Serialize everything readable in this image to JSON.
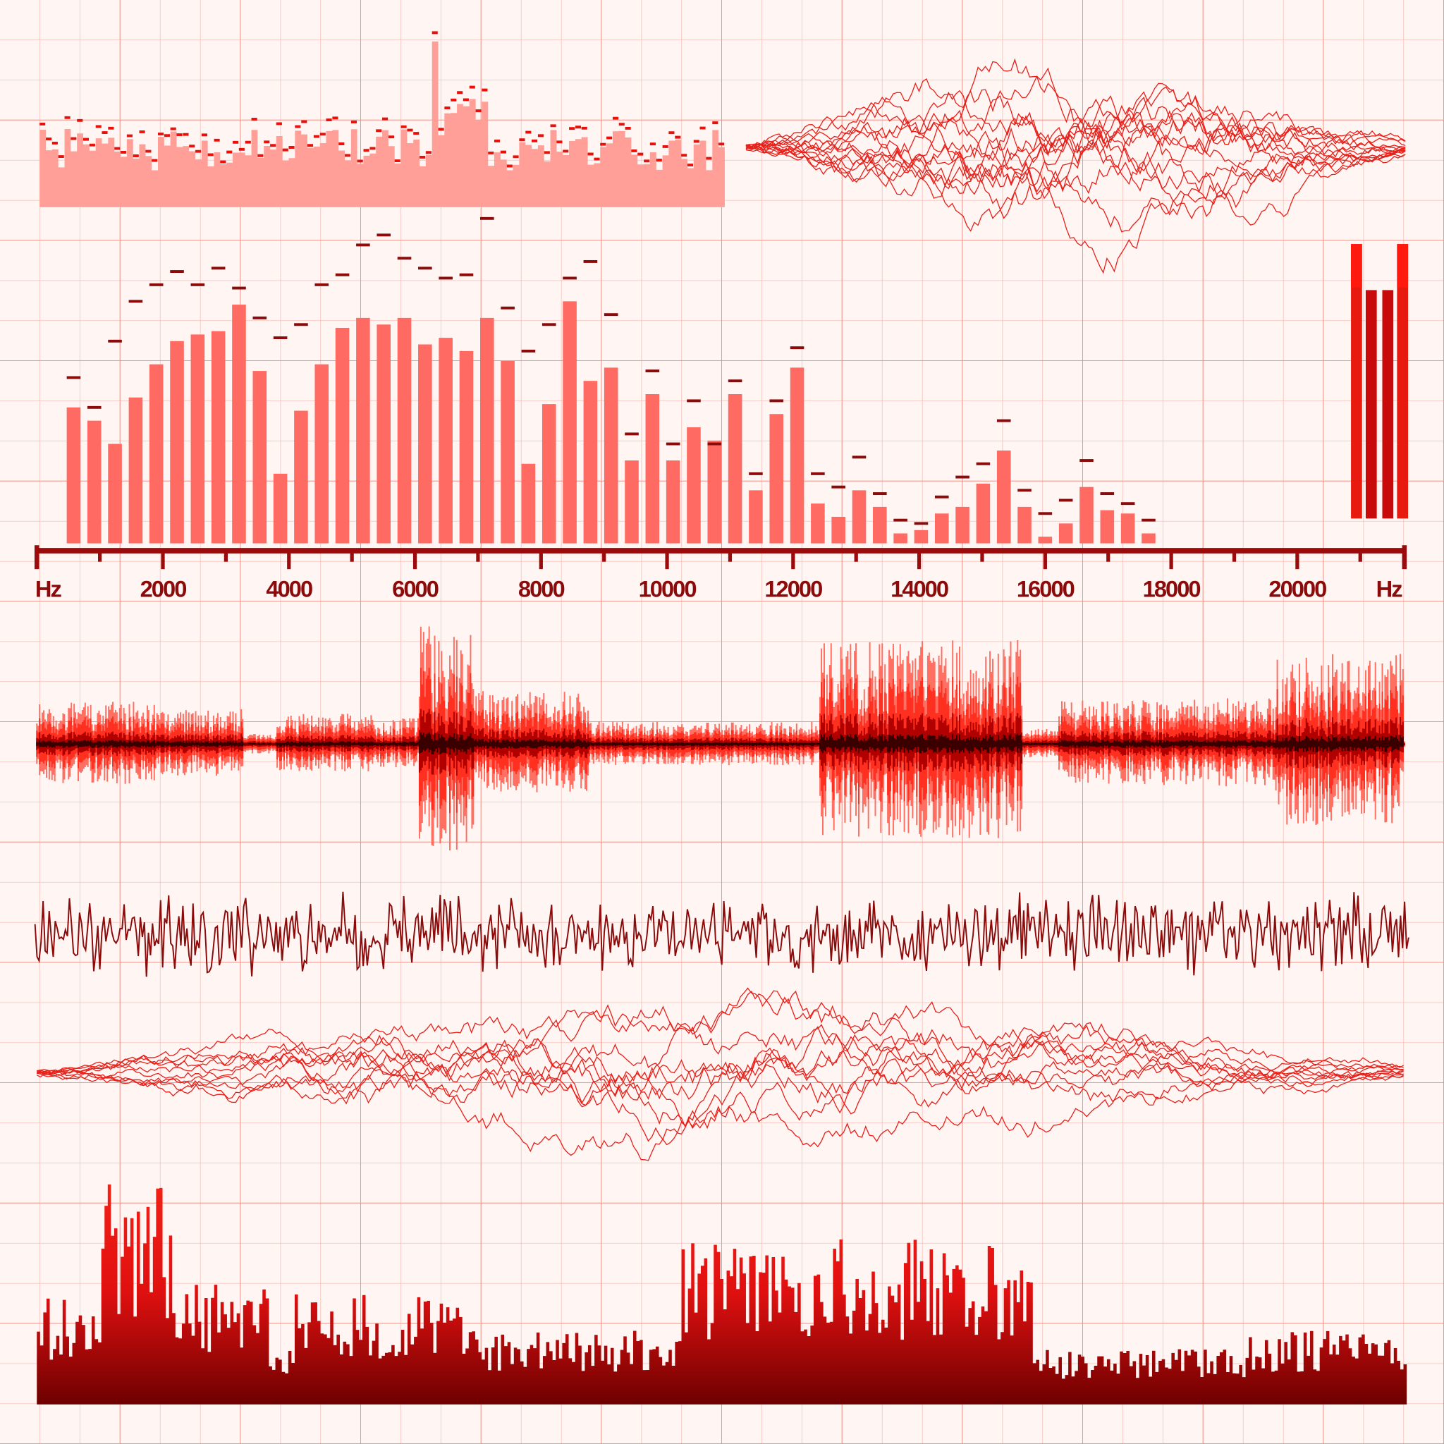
{
  "chart_data": {
    "type": "bar",
    "x_label": "Hz",
    "x": [
      584,
      912,
      1240,
      1568,
      1896,
      2224,
      2552,
      2880,
      3208,
      3536,
      3864,
      4192,
      4520,
      4848,
      5176,
      5504,
      5832,
      6160,
      6488,
      6816,
      7144,
      7472,
      7800,
      8128,
      8456,
      8784,
      9112,
      9440,
      9768,
      10096,
      10424,
      10752,
      11080,
      11408,
      11736,
      12064,
      12392,
      12720,
      13048,
      13376,
      13704,
      14032,
      14360,
      14688,
      15016,
      15344,
      15672,
      16000,
      16328,
      16656,
      16984,
      17312,
      17640
    ],
    "values": [
      41,
      37,
      30,
      44,
      54,
      61,
      63,
      64,
      72,
      52,
      21,
      40,
      54,
      65,
      68,
      66,
      68,
      60,
      62,
      58,
      68,
      55,
      24,
      42,
      73,
      49,
      53,
      25,
      45,
      25,
      35,
      31,
      45,
      16,
      39,
      53,
      12,
      8,
      16,
      11,
      3,
      4,
      9,
      11,
      18,
      28,
      11,
      2,
      6,
      17,
      10,
      9,
      3
    ],
    "peaks": [
      50,
      41,
      61,
      73,
      78,
      82,
      78,
      83,
      77,
      68,
      62,
      66,
      78,
      81,
      90,
      93,
      86,
      83,
      80,
      81,
      98,
      71,
      58,
      66,
      80,
      85,
      69,
      33,
      52,
      30,
      43,
      30,
      49,
      21,
      43,
      59,
      21,
      17,
      26,
      15,
      7,
      6,
      14,
      20,
      24,
      37,
      16,
      9,
      13,
      25,
      15,
      12,
      7
    ],
    "color": "#ff6b63",
    "peak_color": "#8b0a0a",
    "xlim": [
      0,
      21700
    ],
    "ylim": [
      0,
      100
    ],
    "xticks": [
      2000,
      4000,
      6000,
      8000,
      10000,
      12000,
      14000,
      16000,
      18000,
      20000
    ],
    "xminor_ticks": [
      1000,
      3000,
      5000,
      7000,
      9000,
      11000,
      13000,
      15000,
      17000,
      19000,
      21000
    ]
  }
}
